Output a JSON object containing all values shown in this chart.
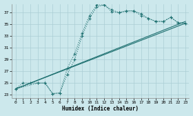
{
  "xlabel": "Humidex (Indice chaleur)",
  "background_color": "#cce8ec",
  "line_color": "#1e7070",
  "grid_color": "#aacdd4",
  "xlim": [
    -0.5,
    23.5
  ],
  "ylim": [
    22.5,
    38.5
  ],
  "yticks": [
    23,
    25,
    27,
    29,
    31,
    33,
    35,
    37
  ],
  "xticks": [
    0,
    1,
    2,
    3,
    4,
    5,
    6,
    7,
    8,
    9,
    10,
    11,
    12,
    13,
    14,
    15,
    16,
    17,
    18,
    19,
    20,
    21,
    22,
    23
  ],
  "series_dotted_1": {
    "x": [
      0,
      1,
      2,
      3,
      4,
      5,
      6,
      7,
      8,
      9,
      10,
      11,
      12,
      13,
      14,
      15,
      16,
      17,
      18,
      19,
      20,
      21,
      22,
      23
    ],
    "y": [
      24,
      25,
      25,
      25,
      25,
      23.2,
      23.3,
      27.5,
      30,
      33.5,
      36.5,
      38.3,
      38.3,
      37.2,
      37.0,
      37.3,
      37.3,
      36.5,
      36.0,
      35.5,
      35.5,
      36.2,
      35.3,
      35.2
    ]
  },
  "series_dotted_2": {
    "x": [
      0,
      3,
      4,
      5,
      6,
      7,
      8,
      9,
      10,
      11,
      12,
      13,
      14,
      15,
      16,
      17,
      18,
      19,
      20,
      21,
      22,
      23
    ],
    "y": [
      24,
      25,
      25,
      23.2,
      23.3,
      26.5,
      29.0,
      33.0,
      36.0,
      38.0,
      38.3,
      37.5,
      37.0,
      37.3,
      37.3,
      36.8,
      36.0,
      35.5,
      35.5,
      36.2,
      35.3,
      35.2
    ]
  },
  "series_line_1": {
    "x": [
      0,
      23
    ],
    "y": [
      24.0,
      35.5
    ]
  },
  "series_line_2": {
    "x": [
      0,
      23
    ],
    "y": [
      24.0,
      35.2
    ]
  }
}
